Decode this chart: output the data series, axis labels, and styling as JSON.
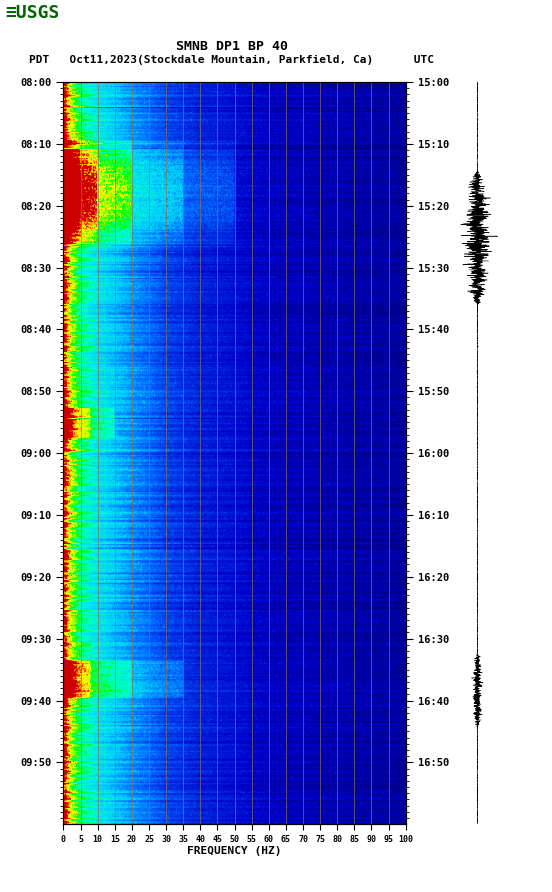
{
  "title_line1": "SMNB DP1 BP 40",
  "title_line2": "PDT   Oct11,2023(Stockdale Mountain, Parkfield, Ca)      UTC",
  "left_times": [
    "08:00",
    "08:10",
    "08:20",
    "08:30",
    "08:40",
    "08:50",
    "09:00",
    "09:10",
    "09:20",
    "09:30",
    "09:40",
    "09:50"
  ],
  "right_times": [
    "15:00",
    "15:10",
    "15:20",
    "15:30",
    "15:40",
    "15:50",
    "16:00",
    "16:10",
    "16:20",
    "16:30",
    "16:40",
    "16:50"
  ],
  "freq_ticks": [
    0,
    5,
    10,
    15,
    20,
    25,
    30,
    35,
    40,
    45,
    50,
    55,
    60,
    65,
    70,
    75,
    80,
    85,
    90,
    95,
    100
  ],
  "freq_label": "FREQUENCY (HZ)",
  "grid_line_color": "#8B7355",
  "grid_line_alpha": 0.8,
  "grid_freqs": [
    5,
    10,
    15,
    20,
    25,
    30,
    35,
    40,
    45,
    50,
    55,
    60,
    65,
    70,
    75,
    80,
    85,
    90,
    95,
    100
  ],
  "background_color": "#ffffff",
  "n_time": 600,
  "n_freq": 500
}
